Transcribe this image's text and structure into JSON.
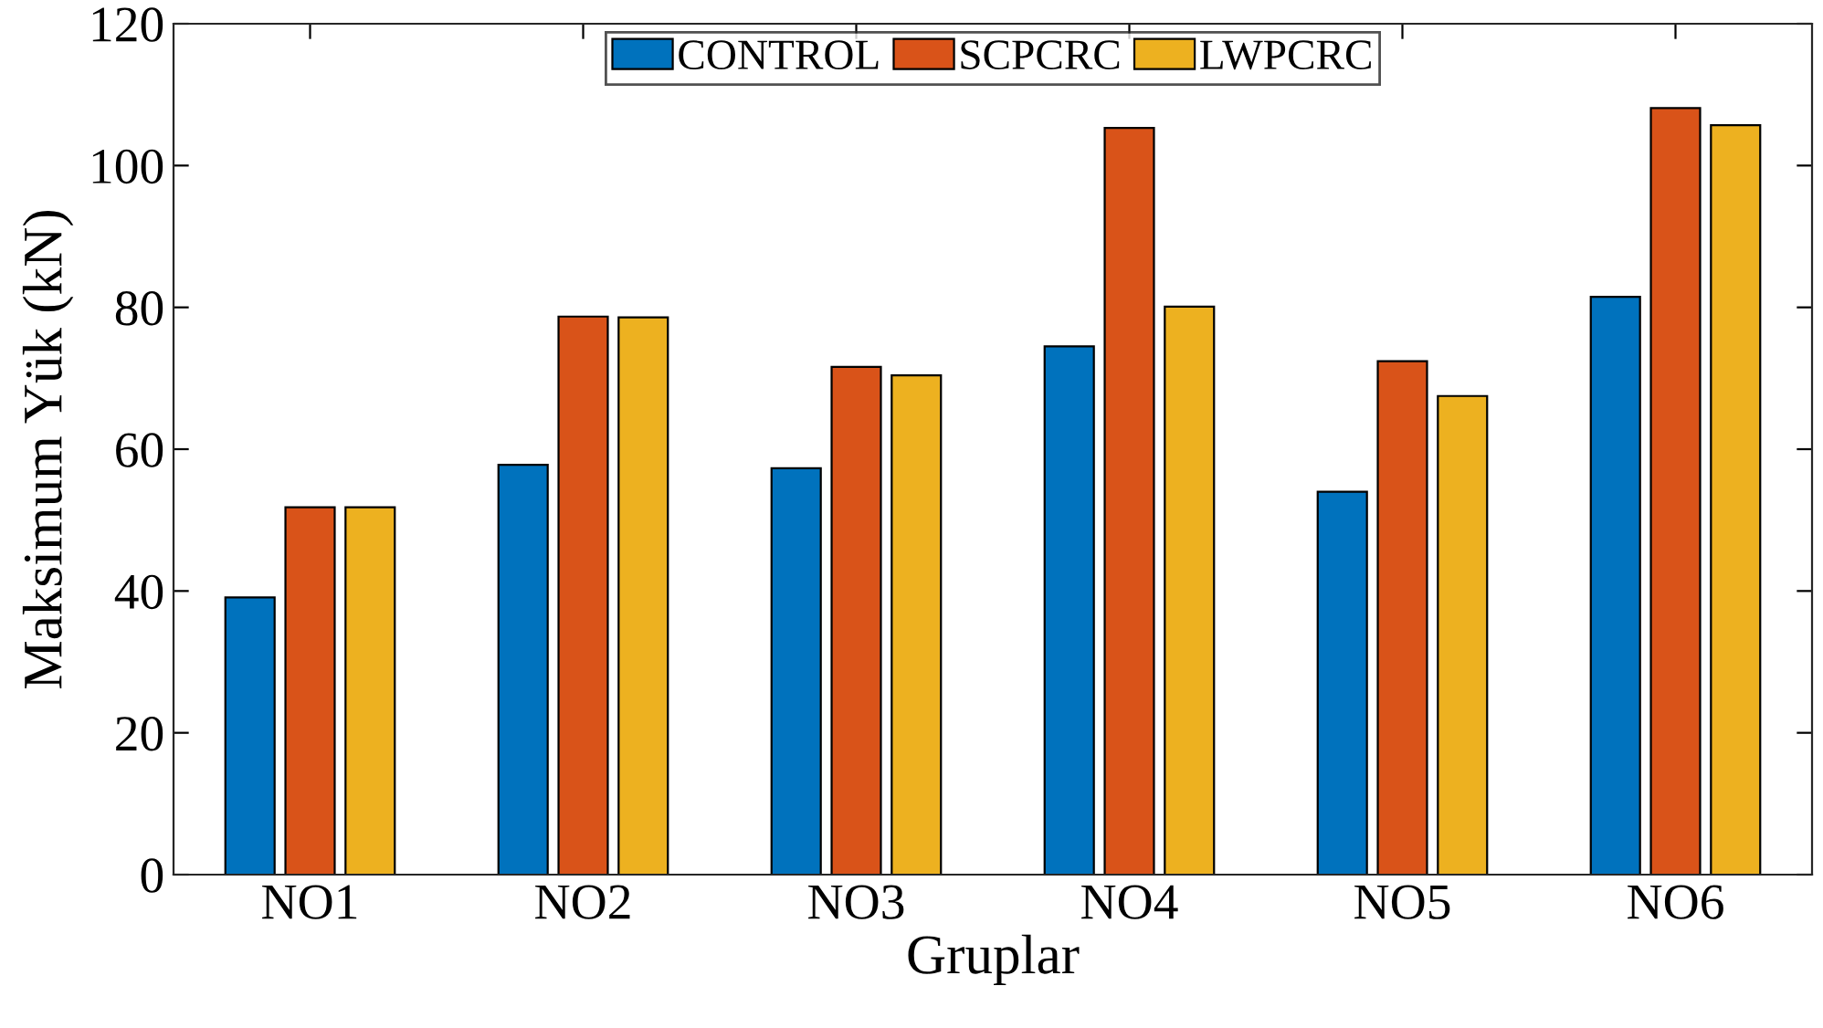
{
  "chart_data": {
    "type": "bar",
    "xlabel": "Gruplar",
    "ylabel": "Maksimum Yük (kN)",
    "categories": [
      "NO1",
      "NO2",
      "NO3",
      "NO4",
      "NO5",
      "NO6"
    ],
    "series": [
      {
        "name": "CONTROL",
        "color": "#0072bd",
        "values": [
          39.1,
          57.8,
          57.3,
          74.5,
          54.0,
          81.5
        ]
      },
      {
        "name": "SCPCRC",
        "color": "#d95319",
        "values": [
          51.8,
          78.7,
          71.6,
          105.3,
          72.4,
          108.1
        ]
      },
      {
        "name": "LWPCRC",
        "color": "#edb120",
        "values": [
          51.8,
          78.6,
          70.4,
          80.1,
          67.5,
          105.7
        ]
      }
    ],
    "ylim": [
      0,
      120
    ],
    "yticks": [
      0,
      20,
      40,
      60,
      80,
      100,
      120
    ],
    "grid": false,
    "legend": "top"
  }
}
